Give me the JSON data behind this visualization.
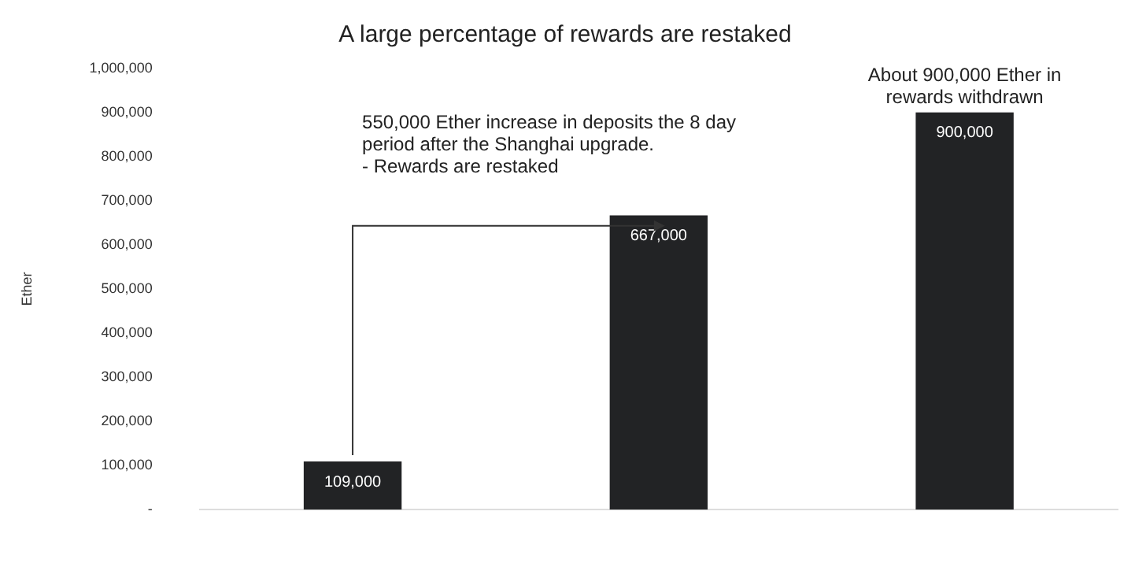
{
  "chart_data": {
    "type": "bar",
    "title": "A large percentage of rewards are restaked",
    "ylabel": "Ether",
    "categories": [
      null,
      null,
      null
    ],
    "values": [
      109000,
      667000,
      900000
    ],
    "value_labels": [
      "109,000",
      "667,000",
      "900,000"
    ],
    "color": "#222325",
    "ylim": [
      0,
      1000000
    ],
    "yticks": [
      {
        "value": 0,
        "label": "-"
      },
      {
        "value": 100000,
        "label": "100,000"
      },
      {
        "value": 200000,
        "label": "200,000"
      },
      {
        "value": 300000,
        "label": "300,000"
      },
      {
        "value": 400000,
        "label": "400,000"
      },
      {
        "value": 500000,
        "label": "500,000"
      },
      {
        "value": 600000,
        "label": "600,000"
      },
      {
        "value": 700000,
        "label": "700,000"
      },
      {
        "value": 800000,
        "label": "800,000"
      },
      {
        "value": 900000,
        "label": "900,000"
      },
      {
        "value": 1000000,
        "label": "1,000,000"
      }
    ],
    "annotations": [
      "550,000 Ether increase in deposits the 8 day\nperiod after the Shanghai upgrade.\n- Rewards are restaked",
      "About 900,000 Ether in\nrewards withdrawn"
    ],
    "grid": false,
    "legend": false
  }
}
